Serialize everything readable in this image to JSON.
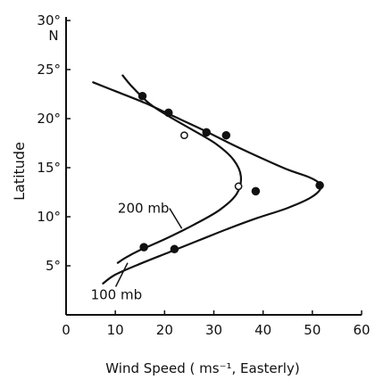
{
  "chart_data": {
    "type": "scatter",
    "xlabel": "Wind Speed ( ms⁻¹, Easterly)",
    "ylabel": "Latitude",
    "y_unit_label": "N",
    "xlim": [
      0,
      60
    ],
    "ylim": [
      0,
      30
    ],
    "x_ticks": [
      {
        "value": 0,
        "label": "0"
      },
      {
        "value": 10,
        "label": "10"
      },
      {
        "value": 20,
        "label": "20"
      },
      {
        "value": 30,
        "label": "30"
      },
      {
        "value": 40,
        "label": "40"
      },
      {
        "value": 50,
        "label": "50"
      },
      {
        "value": 60,
        "label": "60"
      }
    ],
    "y_ticks": [
      {
        "value": 5,
        "label": "5°"
      },
      {
        "value": 10,
        "label": "10°"
      },
      {
        "value": 15,
        "label": "15°"
      },
      {
        "value": 20,
        "label": "20°"
      },
      {
        "value": 25,
        "label": "25°"
      },
      {
        "value": 30,
        "label": "30°"
      }
    ],
    "grid": false,
    "legend": "none",
    "series": [
      {
        "name": "200 mb",
        "kind": "curve",
        "color": "#111111",
        "points": [
          [
            11.5,
            24.4
          ],
          [
            13.5,
            23.2
          ],
          [
            17,
            21.5
          ],
          [
            21,
            20.2
          ],
          [
            25.5,
            18.9
          ],
          [
            30.5,
            17.4
          ],
          [
            34,
            15.8
          ],
          [
            35.5,
            14.1
          ],
          [
            34.6,
            12.3
          ],
          [
            31.2,
            10.7
          ],
          [
            26,
            9.2
          ],
          [
            20,
            7.7
          ],
          [
            15,
            6.6
          ],
          [
            12,
            5.8
          ],
          [
            10.5,
            5.3
          ]
        ]
      },
      {
        "name": "100 mb",
        "kind": "curve",
        "color": "#111111",
        "points": [
          [
            5.5,
            23.7
          ],
          [
            10,
            22.8
          ],
          [
            16,
            21.6
          ],
          [
            22,
            20.2
          ],
          [
            28,
            18.8
          ],
          [
            34,
            17.3
          ],
          [
            40,
            15.9
          ],
          [
            45,
            14.8
          ],
          [
            49,
            14.1
          ],
          [
            51.2,
            13.5
          ],
          [
            51.6,
            12.8
          ],
          [
            49.5,
            11.9
          ],
          [
            45,
            10.9
          ],
          [
            39,
            9.9
          ],
          [
            33,
            8.8
          ],
          [
            27,
            7.6
          ],
          [
            21,
            6.4
          ],
          [
            15,
            5.2
          ],
          [
            10,
            4.1
          ],
          [
            7.5,
            3.2
          ]
        ]
      },
      {
        "name": "",
        "kind": "points",
        "marker": "filled",
        "color": "#111111",
        "points": [
          [
            15.5,
            22.3
          ],
          [
            20.8,
            20.6
          ],
          [
            28.5,
            18.6
          ],
          [
            32.5,
            18.3
          ],
          [
            38.5,
            12.6
          ],
          [
            51.5,
            13.2
          ],
          [
            15.8,
            6.9
          ],
          [
            22,
            6.7
          ]
        ]
      },
      {
        "name": "",
        "kind": "points",
        "marker": "open",
        "color": "#111111",
        "points": [
          [
            24,
            18.3
          ],
          [
            35,
            13.1
          ]
        ]
      }
    ],
    "annotations": [
      {
        "text": "200 mb",
        "series": "200 mb",
        "x": 10.5,
        "y": 10.4,
        "arrow_to": [
          23.5,
          8.8
        ]
      },
      {
        "text": "100 mb",
        "series": "100 mb",
        "x": 5,
        "y": 1.6,
        "arrow_to": [
          12.5,
          5.3
        ]
      }
    ]
  }
}
